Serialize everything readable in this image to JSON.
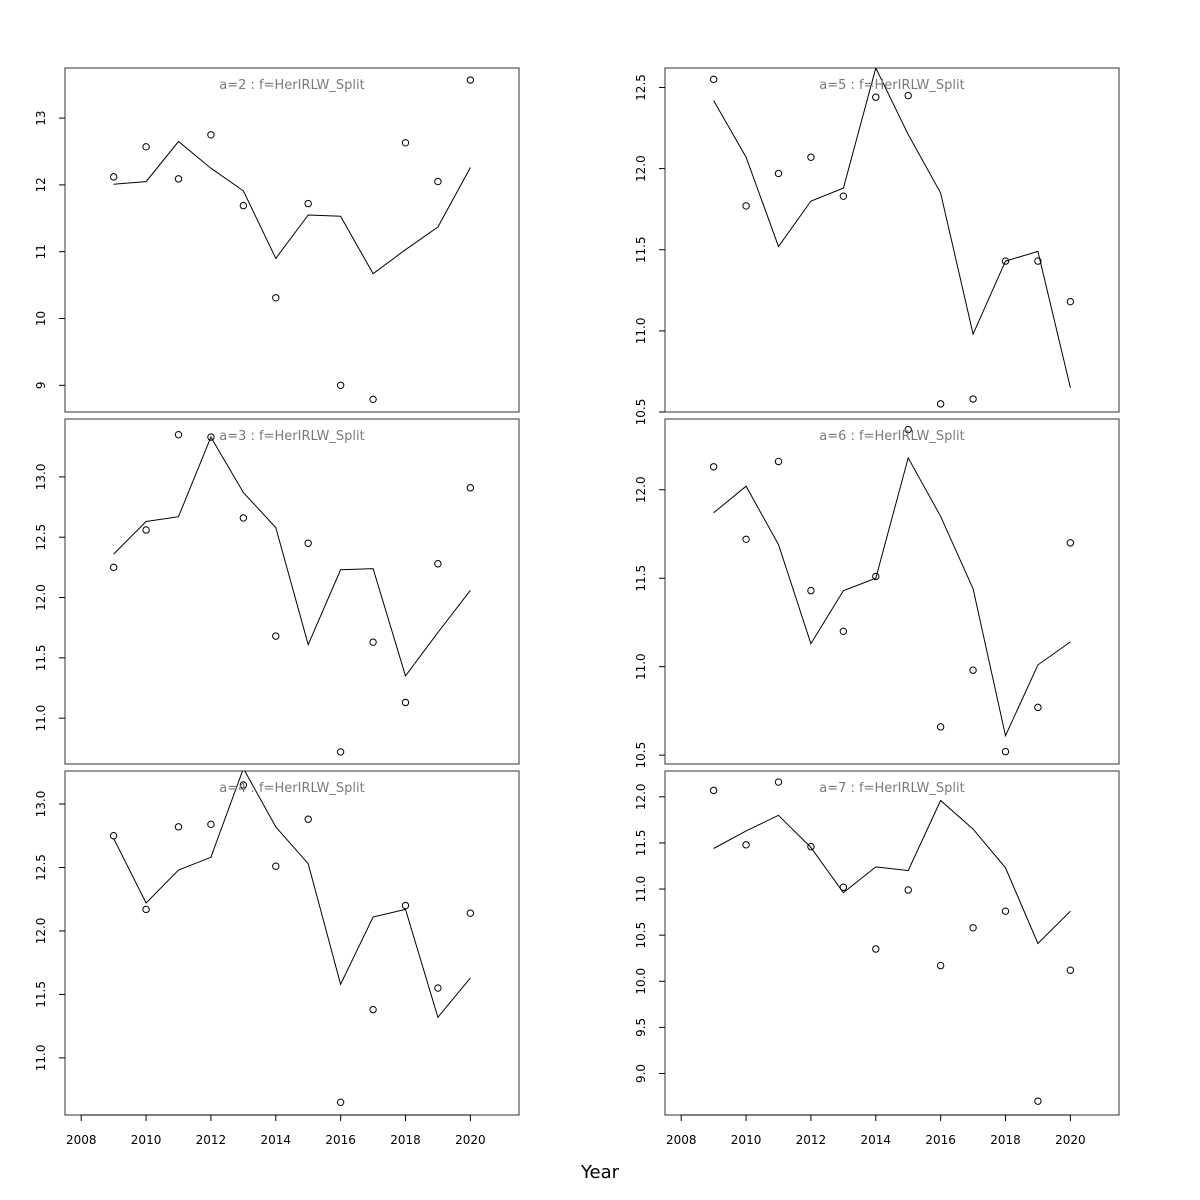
{
  "figure": {
    "xlabel": "Year"
  },
  "chart_data": [
    {
      "type": "line",
      "panel_label": "a=2 : f=HerIRLW_Split",
      "x": [
        2009,
        2010,
        2011,
        2012,
        2013,
        2014,
        2015,
        2016,
        2017,
        2018,
        2019,
        2020
      ],
      "series": [
        {
          "kind": "points",
          "values": [
            12.12,
            12.57,
            12.09,
            12.75,
            11.69,
            10.31,
            11.72,
            9.0,
            8.79,
            12.63,
            12.05,
            13.57
          ]
        },
        {
          "kind": "line",
          "values": [
            12.01,
            12.05,
            12.65,
            12.25,
            11.91,
            10.9,
            11.55,
            11.53,
            10.67,
            11.03,
            11.37,
            12.26
          ]
        }
      ],
      "yticks": [
        9,
        10,
        11,
        12,
        13
      ],
      "ytick_labels": [
        "9",
        "10",
        "11",
        "12",
        "13"
      ],
      "ylim": [
        8.6,
        13.75
      ],
      "xlim": [
        2007.5,
        2021.5
      ],
      "xticks": []
    },
    {
      "type": "line",
      "panel_label": "a=5 : f=HerIRLW_Split",
      "x": [
        2009,
        2010,
        2011,
        2012,
        2013,
        2014,
        2015,
        2016,
        2017,
        2018,
        2019,
        2020
      ],
      "series": [
        {
          "kind": "points",
          "values": [
            12.55,
            11.77,
            11.97,
            12.07,
            11.83,
            12.44,
            12.45,
            10.55,
            10.58,
            11.43,
            11.43,
            11.18
          ]
        },
        {
          "kind": "line",
          "values": [
            12.42,
            12.07,
            11.52,
            11.8,
            11.88,
            12.62,
            12.21,
            11.85,
            10.98,
            11.43,
            11.49,
            10.65
          ]
        }
      ],
      "yticks": [
        10.5,
        11.0,
        11.5,
        12.0,
        12.5
      ],
      "ytick_labels": [
        "10.5",
        "11.0",
        "11.5",
        "12.0",
        "12.5"
      ],
      "ylim": [
        10.5,
        12.62
      ],
      "xlim": [
        2007.5,
        2021.5
      ],
      "xticks": []
    },
    {
      "type": "line",
      "panel_label": "a=3 : f=HerIRLW_Split",
      "x": [
        2009,
        2010,
        2011,
        2012,
        2013,
        2014,
        2015,
        2016,
        2017,
        2018,
        2019,
        2020
      ],
      "series": [
        {
          "kind": "points",
          "values": [
            12.25,
            12.56,
            13.35,
            13.33,
            12.66,
            11.68,
            12.45,
            10.72,
            11.63,
            11.13,
            12.28,
            12.91
          ]
        },
        {
          "kind": "line",
          "values": [
            12.36,
            12.63,
            12.67,
            13.33,
            12.87,
            12.58,
            11.61,
            12.23,
            12.24,
            11.35,
            11.71,
            12.06
          ]
        }
      ],
      "yticks": [
        11.0,
        11.5,
        12.0,
        12.5,
        13.0
      ],
      "ytick_labels": [
        "11.0",
        "11.5",
        "12.0",
        "12.5",
        "13.0"
      ],
      "ylim": [
        10.62,
        13.48
      ],
      "xlim": [
        2007.5,
        2021.5
      ],
      "xticks": []
    },
    {
      "type": "line",
      "panel_label": "a=6 : f=HerIRLW_Split",
      "x": [
        2009,
        2010,
        2011,
        2012,
        2013,
        2014,
        2015,
        2016,
        2017,
        2018,
        2019,
        2020
      ],
      "series": [
        {
          "kind": "points",
          "values": [
            12.13,
            11.72,
            12.16,
            11.43,
            11.2,
            11.51,
            12.34,
            10.66,
            10.98,
            10.52,
            10.77,
            11.7
          ]
        },
        {
          "kind": "line",
          "values": [
            11.87,
            12.02,
            11.69,
            11.13,
            11.43,
            11.5,
            12.18,
            11.85,
            11.44,
            10.61,
            11.01,
            11.14
          ]
        }
      ],
      "yticks": [
        10.5,
        11.0,
        11.5,
        12.0
      ],
      "ytick_labels": [
        "10.5",
        "11.0",
        "11.5",
        "12.0"
      ],
      "ylim": [
        10.45,
        12.4
      ],
      "xlim": [
        2007.5,
        2021.5
      ],
      "xticks": []
    },
    {
      "type": "line",
      "panel_label": "a=4 : f=HerIRLW_Split",
      "x": [
        2009,
        2010,
        2011,
        2012,
        2013,
        2014,
        2015,
        2016,
        2017,
        2018,
        2019,
        2020
      ],
      "series": [
        {
          "kind": "points",
          "values": [
            12.75,
            12.17,
            12.82,
            12.84,
            13.15,
            12.51,
            12.88,
            10.65,
            11.38,
            12.2,
            11.55,
            12.14
          ]
        },
        {
          "kind": "line",
          "values": [
            12.73,
            12.22,
            12.48,
            12.58,
            13.28,
            12.82,
            12.53,
            11.58,
            12.11,
            12.17,
            11.32,
            11.63
          ]
        }
      ],
      "yticks": [
        11.0,
        11.5,
        12.0,
        12.5,
        13.0
      ],
      "ytick_labels": [
        "11.0",
        "11.5",
        "12.0",
        "12.5",
        "13.0"
      ],
      "ylim": [
        10.55,
        13.26
      ],
      "xlim": [
        2007.5,
        2021.5
      ],
      "xticks": [
        2008,
        2010,
        2012,
        2014,
        2016,
        2018,
        2020
      ],
      "xtick_labels": [
        "2008",
        "2010",
        "2012",
        "2014",
        "2016",
        "2018",
        "2020"
      ]
    },
    {
      "type": "line",
      "panel_label": "a=7 : f=HerIRLW_Split",
      "x": [
        2009,
        2010,
        2011,
        2012,
        2013,
        2014,
        2015,
        2016,
        2017,
        2018,
        2019,
        2020
      ],
      "series": [
        {
          "kind": "points",
          "values": [
            12.07,
            11.48,
            12.16,
            11.46,
            11.02,
            10.35,
            10.99,
            10.17,
            10.58,
            10.76,
            8.7,
            10.12
          ]
        },
        {
          "kind": "line",
          "values": [
            11.44,
            11.63,
            11.8,
            11.45,
            10.96,
            11.24,
            11.2,
            11.96,
            11.65,
            11.23,
            10.41,
            10.76
          ]
        }
      ],
      "yticks": [
        9.0,
        9.5,
        10.0,
        10.5,
        11.0,
        11.5,
        12.0
      ],
      "ytick_labels": [
        "9.0",
        "9.5",
        "10.0",
        "10.5",
        "11.0",
        "11.5",
        "12.0"
      ],
      "ylim": [
        8.55,
        12.28
      ],
      "xlim": [
        2007.5,
        2021.5
      ],
      "xticks": [
        2008,
        2010,
        2012,
        2014,
        2016,
        2018,
        2020
      ],
      "xtick_labels": [
        "2008",
        "2010",
        "2012",
        "2014",
        "2016",
        "2018",
        "2020"
      ]
    }
  ]
}
